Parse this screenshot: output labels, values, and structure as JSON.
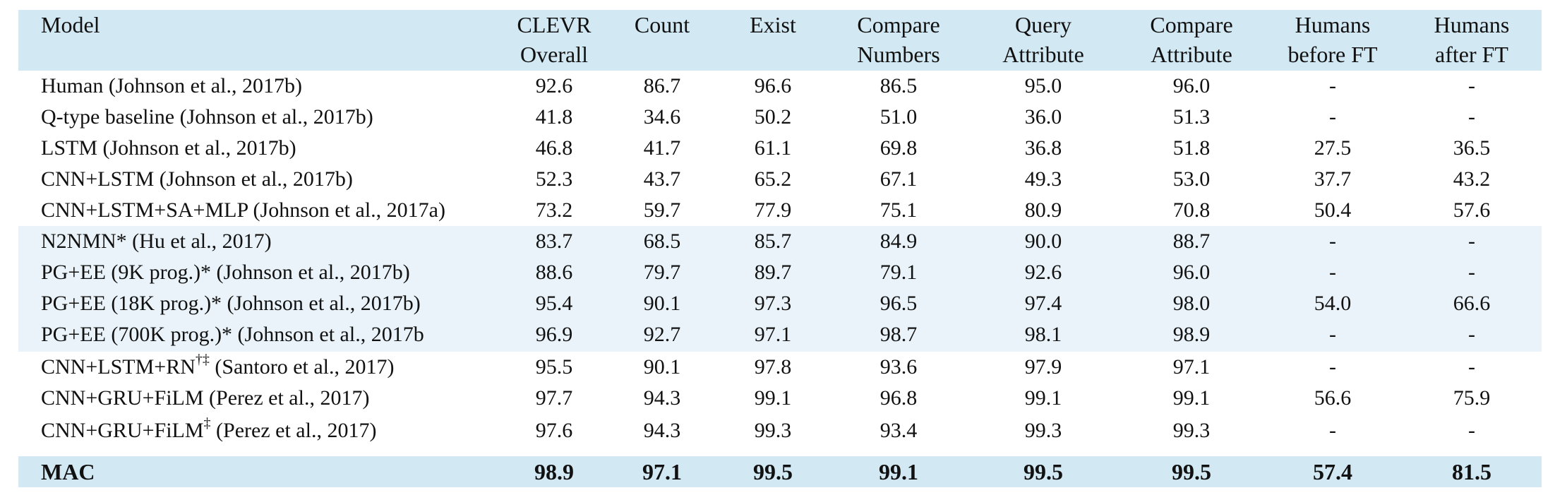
{
  "header": {
    "model": "Model",
    "columns": [
      {
        "line1": "CLEVR",
        "line2": "Overall"
      },
      {
        "line1": "Count",
        "line2": ""
      },
      {
        "line1": "Exist",
        "line2": ""
      },
      {
        "line1": "Compare",
        "line2": "Numbers"
      },
      {
        "line1": "Query",
        "line2": "Attribute"
      },
      {
        "line1": "Compare",
        "line2": "Attribute"
      },
      {
        "line1": "Humans",
        "line2": "before FT"
      },
      {
        "line1": "Humans",
        "line2": "after FT"
      }
    ]
  },
  "rows": [
    {
      "name": "Human (Johnson et al., 2017b)",
      "sup": "",
      "cite": "",
      "values": [
        "92.6",
        "86.7",
        "96.6",
        "86.5",
        "95.0",
        "96.0",
        "-",
        "-"
      ]
    },
    {
      "name": "Q-type baseline (Johnson et al., 2017b)",
      "sup": "",
      "cite": "",
      "values": [
        "41.8",
        "34.6",
        "50.2",
        "51.0",
        "36.0",
        "51.3",
        "-",
        "-"
      ]
    },
    {
      "name": "LSTM (Johnson et al., 2017b)",
      "sup": "",
      "cite": "",
      "values": [
        "46.8",
        "41.7",
        "61.1",
        "69.8",
        "36.8",
        "51.8",
        "27.5",
        "36.5"
      ]
    },
    {
      "name": "CNN+LSTM (Johnson et al., 2017b)",
      "sup": "",
      "cite": "",
      "values": [
        "52.3",
        "43.7",
        "65.2",
        "67.1",
        "49.3",
        "53.0",
        "37.7",
        "43.2"
      ]
    },
    {
      "name": "CNN+LSTM+SA+MLP (Johnson et al., 2017a)",
      "sup": "",
      "cite": "",
      "values": [
        "73.2",
        "59.7",
        "77.9",
        "75.1",
        "80.9",
        "70.8",
        "50.4",
        "57.6"
      ]
    },
    {
      "name": "N2NMN* (Hu et al., 2017)",
      "sup": "",
      "cite": "",
      "values": [
        "83.7",
        "68.5",
        "85.7",
        "84.9",
        "90.0",
        "88.7",
        "-",
        "-"
      ]
    },
    {
      "name": "PG+EE (9K prog.)* (Johnson et al., 2017b)",
      "sup": "",
      "cite": "",
      "values": [
        "88.6",
        "79.7",
        "89.7",
        "79.1",
        "92.6",
        "96.0",
        "-",
        "-"
      ]
    },
    {
      "name": "PG+EE (18K prog.)* (Johnson et al., 2017b)",
      "sup": "",
      "cite": "",
      "values": [
        "95.4",
        "90.1",
        "97.3",
        "96.5",
        "97.4",
        "98.0",
        "54.0",
        "66.6"
      ]
    },
    {
      "name": "PG+EE (700K prog.)* (Johnson et al., 2017b",
      "sup": "",
      "cite": "",
      "values": [
        "96.9",
        "92.7",
        "97.1",
        "98.7",
        "98.1",
        "98.9",
        "-",
        "-"
      ]
    },
    {
      "name": "CNN+LSTM+RN",
      "sup": "†‡",
      "cite": " (Santoro et al., 2017)",
      "values": [
        "95.5",
        "90.1",
        "97.8",
        "93.6",
        "97.9",
        "97.1",
        "-",
        "-"
      ]
    },
    {
      "name": "CNN+GRU+FiLM (Perez et al., 2017)",
      "sup": "",
      "cite": "",
      "values": [
        "97.7",
        "94.3",
        "99.1",
        "96.8",
        "99.1",
        "99.1",
        "56.6",
        "75.9"
      ]
    },
    {
      "name": "CNN+GRU+FiLM",
      "sup": "‡",
      "cite": " (Perez et al., 2017)",
      "values": [
        "97.6",
        "94.3",
        "99.3",
        "93.4",
        "99.3",
        "99.3",
        "-",
        "-"
      ]
    }
  ],
  "mac": {
    "name": "MAC",
    "values": [
      "98.9",
      "97.1",
      "99.5",
      "99.1",
      "99.5",
      "99.5",
      "57.4",
      "81.5"
    ]
  }
}
